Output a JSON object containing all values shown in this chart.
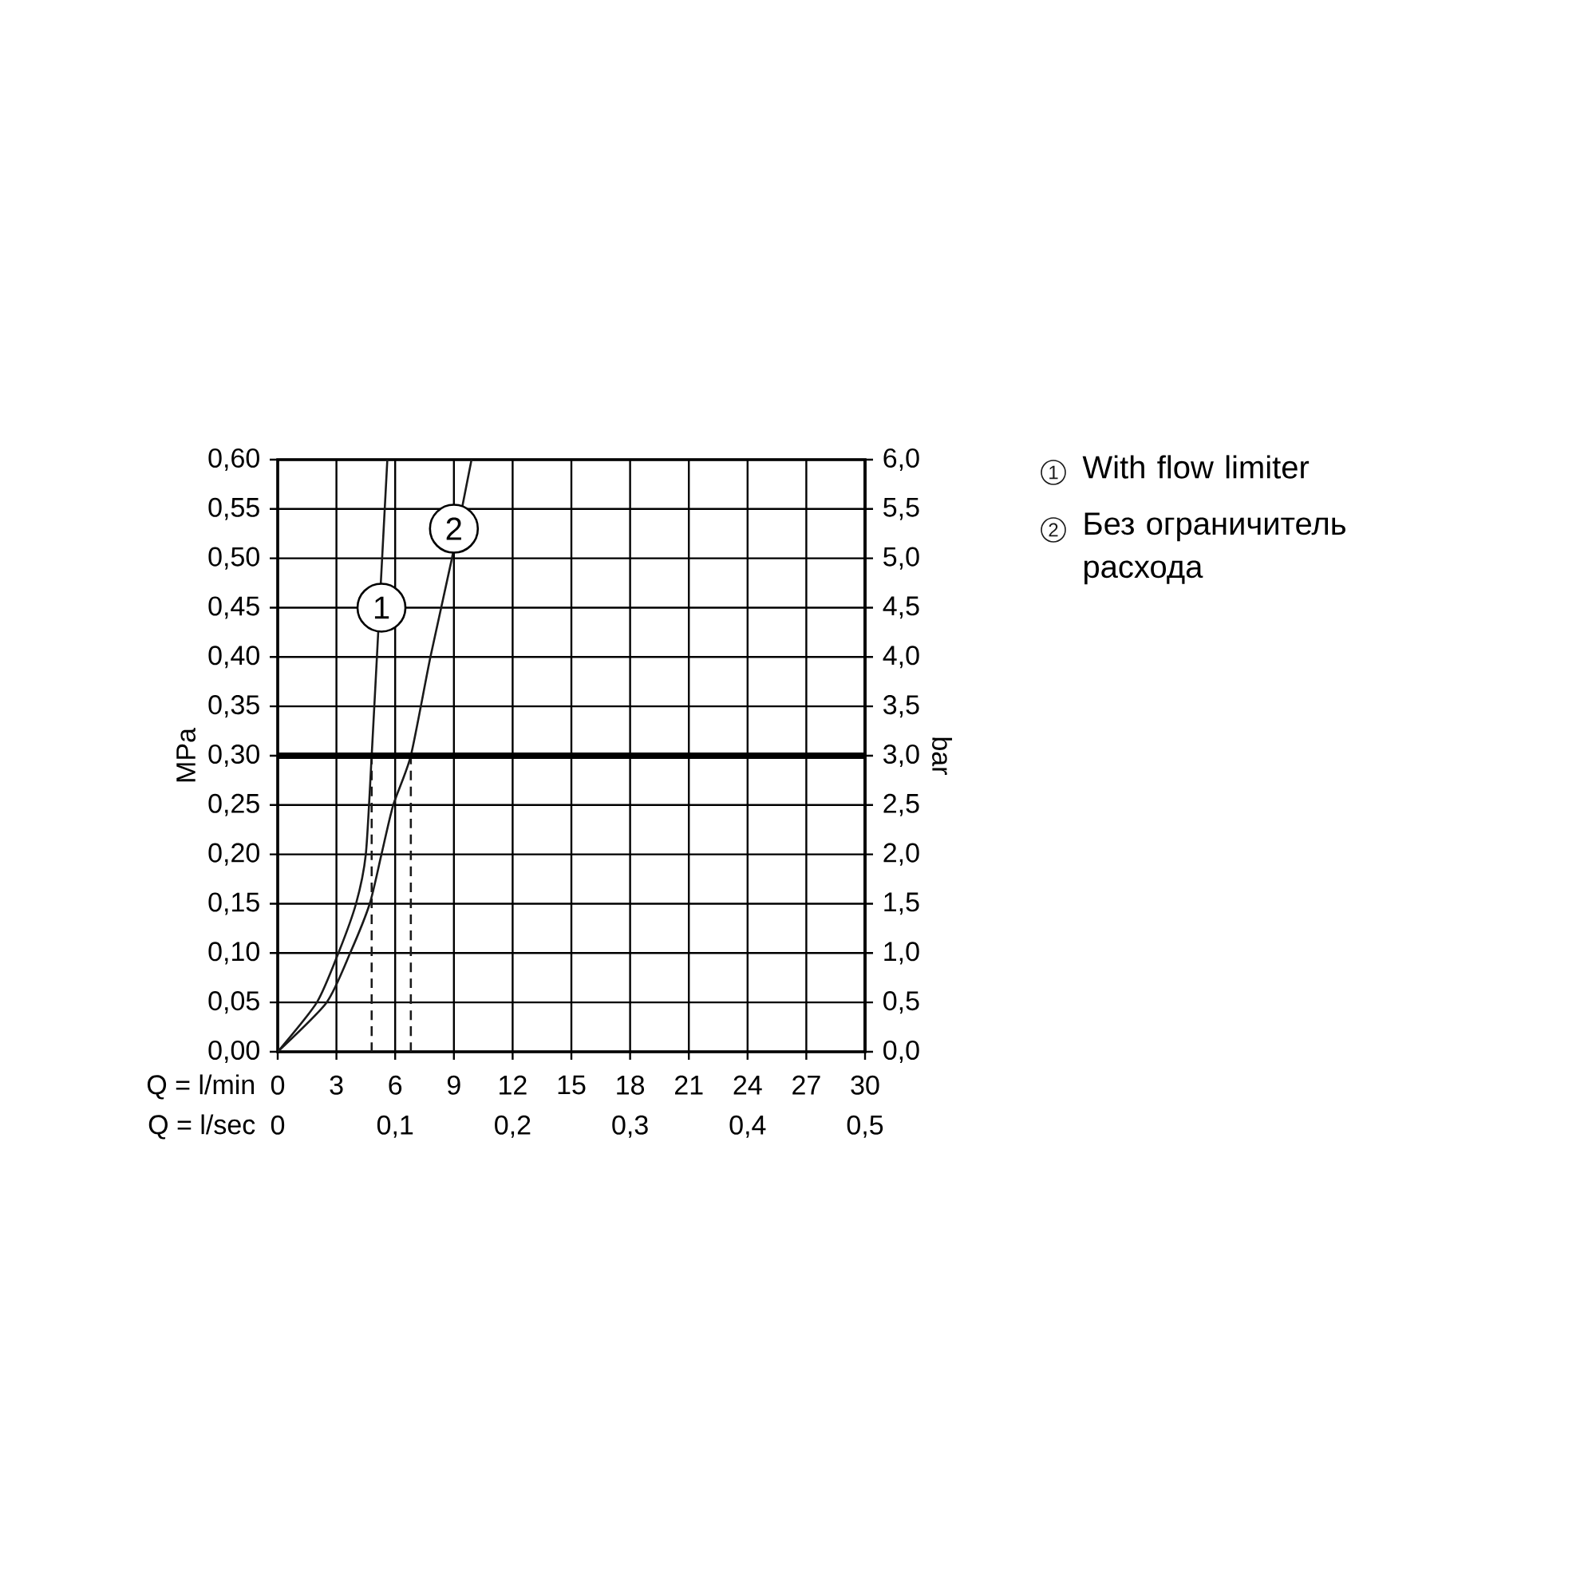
{
  "chart_data": {
    "type": "line",
    "xlabel": "Q = l/min",
    "x2label": "Q = l/sec",
    "ylabel": "MPa",
    "y2label": "bar",
    "xlim": [
      0,
      30
    ],
    "xticks": [
      0,
      3,
      6,
      9,
      12,
      15,
      18,
      21,
      24,
      27,
      30
    ],
    "x2lim": [
      0,
      0.5
    ],
    "x2ticks": [
      0,
      {
        "value": 0.1,
        "label": "0,1"
      },
      {
        "value": 0.2,
        "label": "0,2"
      },
      {
        "value": 0.3,
        "label": "0,3"
      },
      {
        "value": 0.4,
        "label": "0,4"
      },
      {
        "value": 0.5,
        "label": "0,5"
      }
    ],
    "ylim": [
      0,
      0.6
    ],
    "yticks": [
      {
        "value": 0,
        "label": "0,00"
      },
      {
        "value": 0.05,
        "label": "0,05"
      },
      {
        "value": 0.1,
        "label": "0,10"
      },
      {
        "value": 0.15,
        "label": "0,15"
      },
      {
        "value": 0.2,
        "label": "0,20"
      },
      {
        "value": 0.25,
        "label": "0,25"
      },
      {
        "value": 0.3,
        "label": "0,30"
      },
      {
        "value": 0.35,
        "label": "0,35"
      },
      {
        "value": 0.4,
        "label": "0,40"
      },
      {
        "value": 0.45,
        "label": "0,45"
      },
      {
        "value": 0.5,
        "label": "0,50"
      },
      {
        "value": 0.55,
        "label": "0,55"
      },
      {
        "value": 0.6,
        "label": "0,60"
      }
    ],
    "y2lim": [
      0,
      6
    ],
    "y2ticks": [
      {
        "value": 0,
        "label": "0,0"
      },
      {
        "value": 0.5,
        "label": "0,5"
      },
      {
        "value": 1,
        "label": "1,0"
      },
      {
        "value": 1.5,
        "label": "1,5"
      },
      {
        "value": 2,
        "label": "2,0"
      },
      {
        "value": 2.5,
        "label": "2,5"
      },
      {
        "value": 3,
        "label": "3,0"
      },
      {
        "value": 3.5,
        "label": "3,5"
      },
      {
        "value": 4,
        "label": "4,0"
      },
      {
        "value": 4.5,
        "label": "4,5"
      },
      {
        "value": 5,
        "label": "5,0"
      },
      {
        "value": 5.5,
        "label": "5,5"
      },
      {
        "value": 6,
        "label": "6,0"
      }
    ],
    "grid": true,
    "legend": "right",
    "series": [
      {
        "name": "With flow limiter",
        "color": "#1a1a1a",
        "x": [
          0,
          2.0,
          3.1,
          4.0,
          4.5,
          4.8,
          5.2,
          5.6
        ],
        "values": [
          0,
          0.05,
          0.1,
          0.15,
          0.2,
          0.3,
          0.45,
          0.6
        ]
      },
      {
        "name": "Без ограничитель расхода",
        "color": "#1a1a1a",
        "x": [
          0,
          2.5,
          3.7,
          4.7,
          5.3,
          5.9,
          6.8,
          7.8,
          8.9,
          9.9
        ],
        "values": [
          0,
          0.05,
          0.1,
          0.15,
          0.2,
          0.25,
          0.3,
          0.4,
          0.5,
          0.6
        ]
      },
      {
        "color": "#1a1a1a",
        "line_style": "dashed",
        "x": [
          4.8,
          4.8
        ],
        "values": [
          0,
          0.3
        ]
      },
      {
        "color": "#1a1a1a",
        "line_style": "dashed",
        "x": [
          6.8,
          6.8
        ],
        "values": [
          0,
          0.3
        ]
      }
    ],
    "ref_lines": [
      {
        "axis": "y",
        "value": 0.3,
        "color": "#000000"
      }
    ],
    "annotations": [
      {
        "text": "1",
        "x": 5.3,
        "y": 0.45
      },
      {
        "text": "2",
        "x": 9.0,
        "y": 0.53
      }
    ]
  }
}
